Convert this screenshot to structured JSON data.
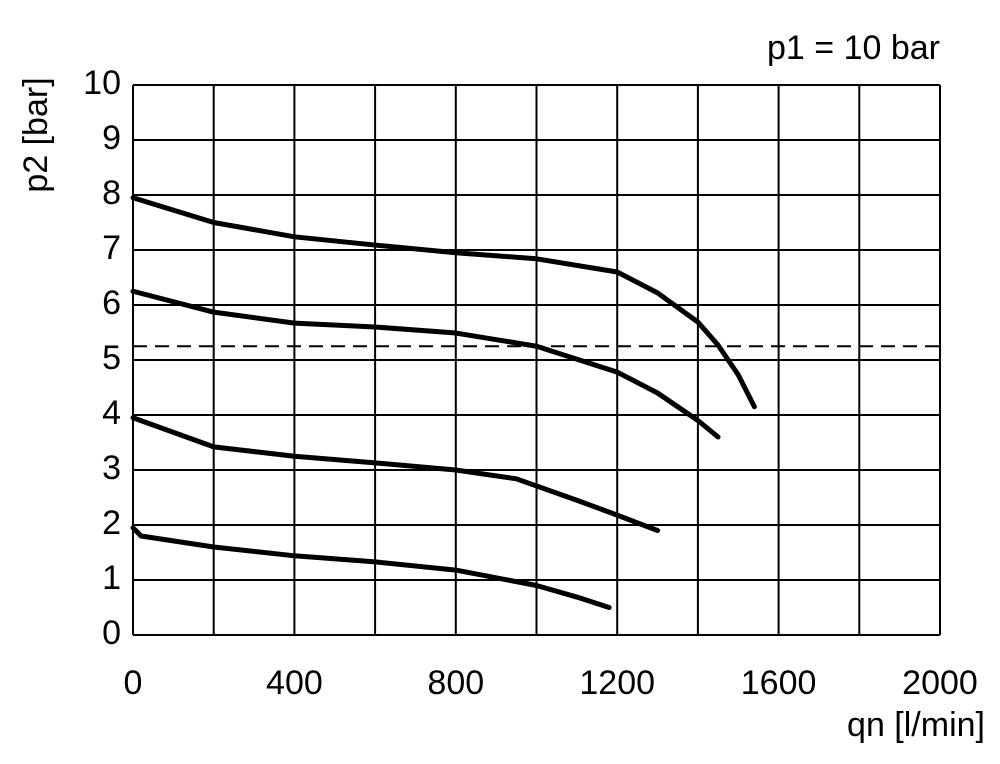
{
  "chart_data": {
    "type": "line",
    "annotation": "p1 = 10 bar",
    "x_label": "qn [l/min]",
    "y_label": "p2 [bar]",
    "xlim": [
      0,
      2000
    ],
    "xticks": [
      0,
      400,
      800,
      1200,
      1600,
      2000
    ],
    "xminorticks": [
      200,
      600,
      1000,
      1400,
      1800
    ],
    "ylim": [
      0,
      10
    ],
    "yticks": [
      0,
      1,
      2,
      3,
      4,
      5,
      6,
      7,
      8,
      9,
      10
    ],
    "grid": true,
    "hlines": [
      5.25
    ],
    "series": [
      {
        "color": "#000000",
        "x": [
          0,
          200,
          400,
          600,
          800,
          1000,
          1200,
          1300,
          1400,
          1450,
          1500,
          1540
        ],
        "values": [
          7.95,
          7.5,
          7.24,
          7.09,
          6.95,
          6.84,
          6.6,
          6.22,
          5.69,
          5.27,
          4.73,
          4.15
        ]
      },
      {
        "color": "#000000",
        "x": [
          0,
          200,
          400,
          600,
          800,
          1000,
          1200,
          1300,
          1400,
          1450
        ],
        "values": [
          6.25,
          5.87,
          5.67,
          5.6,
          5.49,
          5.25,
          4.78,
          4.4,
          3.9,
          3.6
        ]
      },
      {
        "color": "#000000",
        "x": [
          0,
          200,
          400,
          600,
          800,
          950,
          1100,
          1200,
          1300
        ],
        "values": [
          3.95,
          3.42,
          3.25,
          3.13,
          3.0,
          2.84,
          2.45,
          2.18,
          1.9
        ]
      },
      {
        "color": "#000000",
        "x": [
          0,
          20,
          200,
          400,
          600,
          800,
          1000,
          1100,
          1180
        ],
        "values": [
          1.95,
          1.8,
          1.6,
          1.44,
          1.33,
          1.18,
          0.9,
          0.69,
          0.5
        ]
      }
    ]
  }
}
